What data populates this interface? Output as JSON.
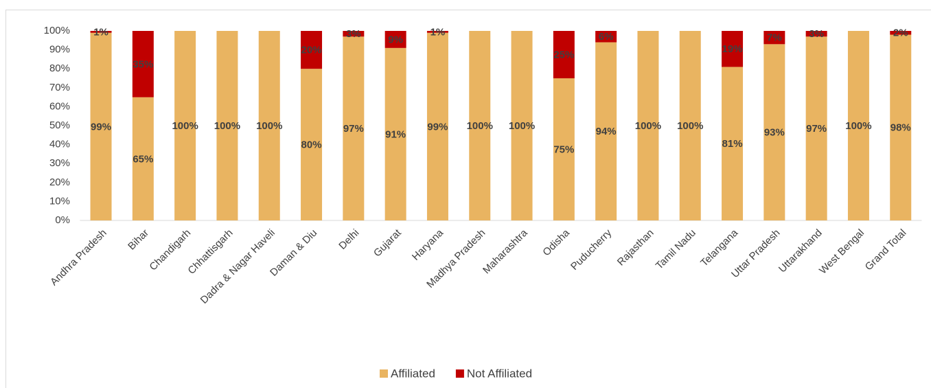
{
  "chart_data": {
    "type": "stacked_bar",
    "categories": [
      "Andhra Pradesh",
      "Bihar",
      "Chandigarh",
      "Chhattisgarh",
      "Dadra & Nagar Haveli",
      "Daman & Diu",
      "Delhi",
      "Gujarat",
      "Haryana",
      "Madhya Pradesh",
      "Maharashtra",
      "Odisha",
      "Puducherry",
      "Rajasthan",
      "Tamil Nadu",
      "Telangana",
      "Uttar Pradesh",
      "Uttarakhand",
      "West Bengal",
      "Grand Total"
    ],
    "series": [
      {
        "name": "Affiliated",
        "color": "#E9B461",
        "values": [
          99,
          65,
          100,
          100,
          100,
          80,
          97,
          91,
          99,
          100,
          100,
          75,
          94,
          100,
          100,
          81,
          93,
          97,
          100,
          98
        ],
        "value_labels": [
          "99%",
          "65%",
          "100%",
          "100%",
          "100%",
          "80%",
          "97%",
          "91%",
          "99%",
          "100%",
          "100%",
          "75%",
          "94%",
          "100%",
          "100%",
          "81%",
          "93%",
          "97%",
          "100%",
          "98%"
        ]
      },
      {
        "name": "Not Affiliated",
        "color": "#C00000",
        "values": [
          1,
          35,
          0,
          0,
          0,
          20,
          3,
          9,
          1,
          0,
          0,
          25,
          6,
          0,
          0,
          19,
          7,
          3,
          0,
          2
        ],
        "value_labels": [
          "1%",
          "35%",
          null,
          null,
          null,
          "20%",
          "3%",
          "9%",
          "1%",
          null,
          null,
          "25%",
          "6%",
          null,
          null,
          "19%",
          "7%",
          "3%",
          null,
          "2%"
        ]
      }
    ],
    "ylim": [
      0,
      100
    ],
    "yticks": [
      {
        "value": 0,
        "label": "0%"
      },
      {
        "value": 10,
        "label": "10%"
      },
      {
        "value": 20,
        "label": "20%"
      },
      {
        "value": 30,
        "label": "30%"
      },
      {
        "value": 40,
        "label": "40%"
      },
      {
        "value": 50,
        "label": "50%"
      },
      {
        "value": 60,
        "label": "60%"
      },
      {
        "value": 70,
        "label": "70%"
      },
      {
        "value": 80,
        "label": "80%"
      },
      {
        "value": 90,
        "label": "90%"
      },
      {
        "value": 100,
        "label": "100%"
      }
    ],
    "grid": false,
    "legend": "bottom"
  }
}
